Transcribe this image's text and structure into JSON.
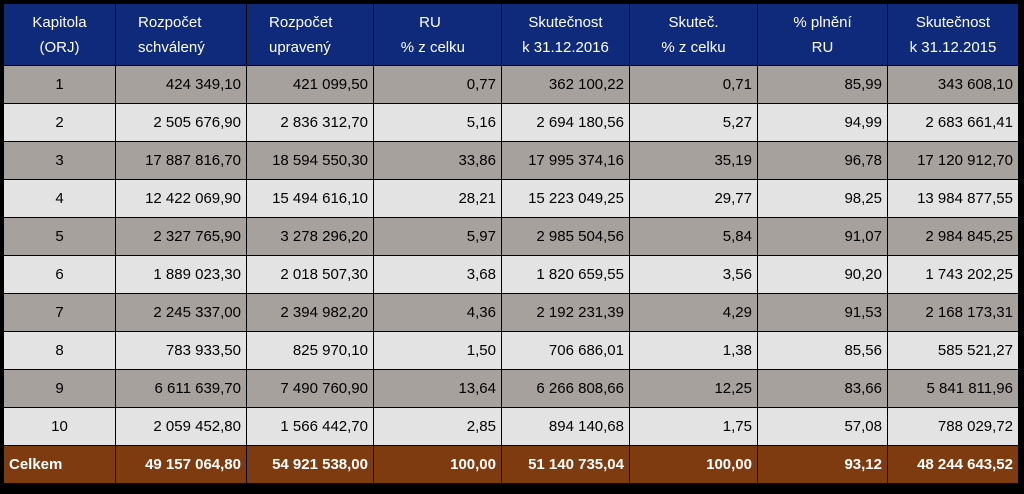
{
  "headers": [
    {
      "line1": "Kapitola",
      "line2": "(ORJ)"
    },
    {
      "line1": "Rozpočet",
      "line2": "schválený"
    },
    {
      "line1": "Rozpočet",
      "line2": "upravený"
    },
    {
      "line1": "RU",
      "line2": "% z celku"
    },
    {
      "line1": "Skutečnost",
      "line2": "k 31.12.2016"
    },
    {
      "line1": "Skuteč.",
      "line2": "% z celku"
    },
    {
      "line1": "% plnění",
      "line2": "RU"
    },
    {
      "line1": "Skutečnost",
      "line2": "k 31.12.2015"
    }
  ],
  "rows": [
    [
      "1",
      "424 349,10",
      "421 099,50",
      "0,77",
      "362 100,22",
      "0,71",
      "85,99",
      "343 608,10"
    ],
    [
      "2",
      "2 505 676,90",
      "2 836 312,70",
      "5,16",
      "2 694 180,56",
      "5,27",
      "94,99",
      "2 683 661,41"
    ],
    [
      "3",
      "17 887 816,70",
      "18 594 550,30",
      "33,86",
      "17 995 374,16",
      "35,19",
      "96,78",
      "17 120 912,70"
    ],
    [
      "4",
      "12 422 069,90",
      "15 494 616,10",
      "28,21",
      "15 223 049,25",
      "29,77",
      "98,25",
      "13 984 877,55"
    ],
    [
      "5",
      "2 327 765,90",
      "3 278 296,20",
      "5,97",
      "2 985 504,56",
      "5,84",
      "91,07",
      "2 984 845,25"
    ],
    [
      "6",
      "1 889 023,30",
      "2 018 507,30",
      "3,68",
      "1 820 659,55",
      "3,56",
      "90,20",
      "1 743 202,25"
    ],
    [
      "7",
      "2 245 337,00",
      "2 394 982,20",
      "4,36",
      "2 192 231,39",
      "4,29",
      "91,53",
      "2 168 173,31"
    ],
    [
      "8",
      "783 933,50",
      "825 970,10",
      "1,50",
      "706 686,01",
      "1,38",
      "85,56",
      "585 521,27"
    ],
    [
      "9",
      "6 611 639,70",
      "7 490 760,90",
      "13,64",
      "6 266 808,66",
      "12,25",
      "83,66",
      "5 841 811,96"
    ],
    [
      "10",
      "2 059 452,80",
      "1 566 442,70",
      "2,85",
      "894 140,68",
      "1,75",
      "57,08",
      "788 029,72"
    ]
  ],
  "total": [
    "Celkem",
    "49 157 064,80",
    "54 921 538,00",
    "100,00",
    "51 140 735,04",
    "100,00",
    "93,12",
    "48 244 643,52"
  ],
  "colors": {
    "header_bg": "#0f2a7a",
    "row_dark": "#a6a19c",
    "row_light": "#e3e3e3",
    "total_bg": "#7e3b0f"
  }
}
